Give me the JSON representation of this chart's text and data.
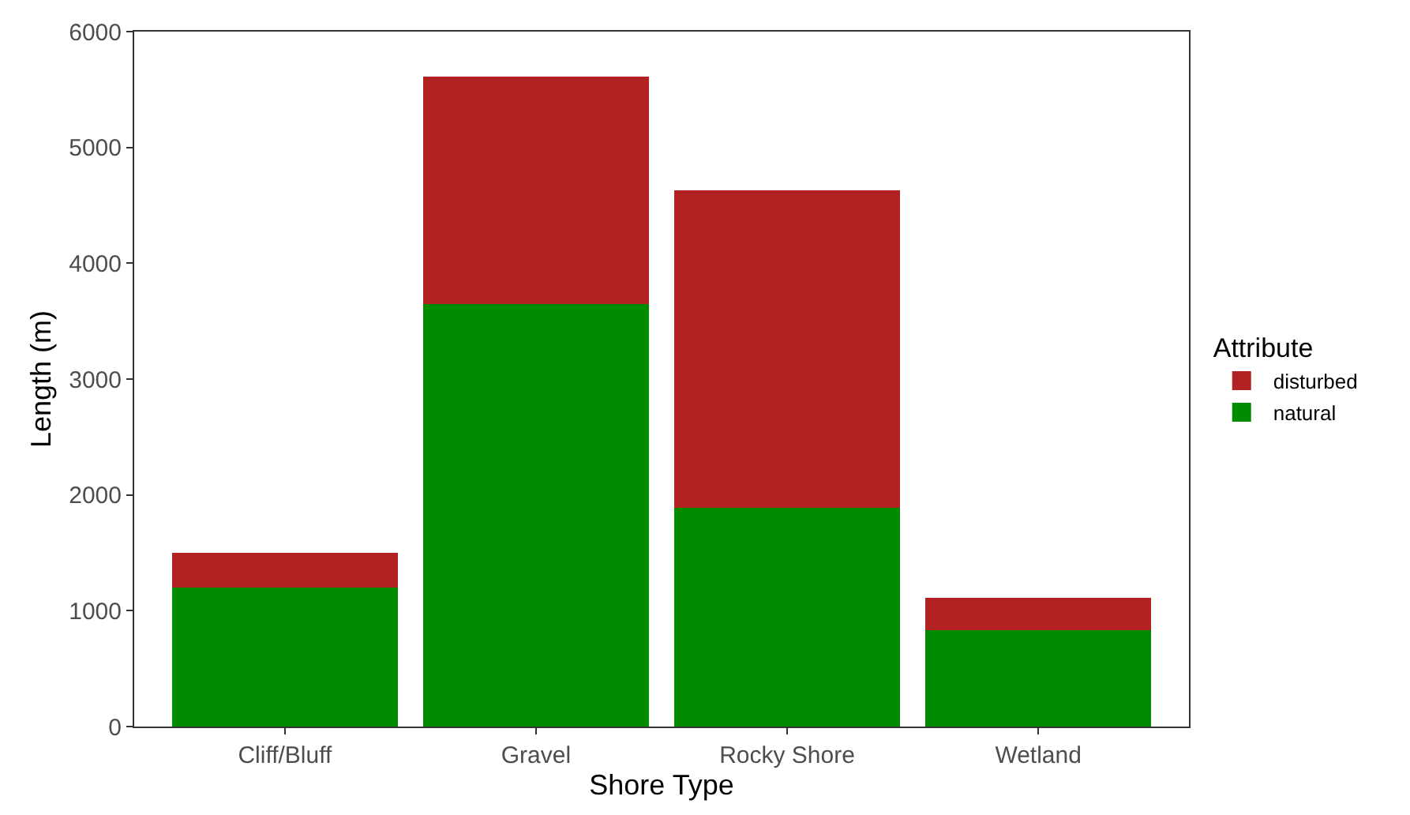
{
  "chart_data": {
    "type": "bar",
    "stacked": true,
    "xlabel": "Shore Type",
    "ylabel": "Length (m)",
    "legend_title": "Attribute",
    "legend": "right",
    "categories": [
      "Cliff/Bluff",
      "Gravel",
      "Rocky Shore",
      "Wetland"
    ],
    "series": [
      {
        "name": "natural",
        "color": "#008b00",
        "values": [
          1200,
          3650,
          1890,
          830
        ]
      },
      {
        "name": "disturbed",
        "color": "#b22222",
        "values": [
          300,
          1960,
          2740,
          280
        ]
      }
    ],
    "ylim": [
      0,
      6000
    ],
    "yticks": [
      0,
      1000,
      2000,
      3000,
      4000,
      5000,
      6000
    ]
  }
}
